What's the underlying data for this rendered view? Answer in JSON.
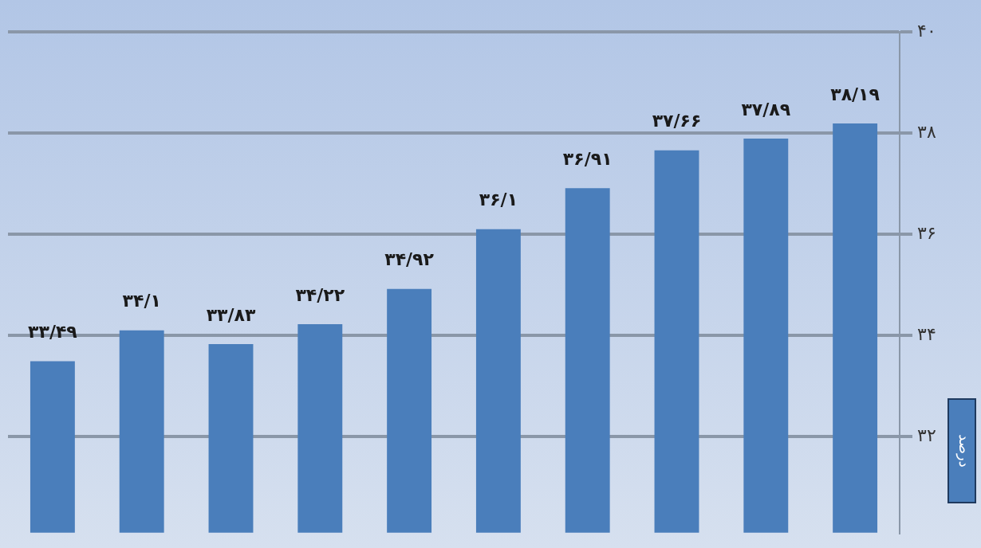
{
  "chart_data": {
    "type": "bar",
    "categories": [
      null,
      null,
      null,
      null,
      null,
      null,
      null,
      null,
      null,
      null
    ],
    "series": [
      {
        "name": "درصد",
        "color": "#4a7ebb",
        "values": [
          33.49,
          34.1,
          33.83,
          34.22,
          34.92,
          36.1,
          36.91,
          37.66,
          37.89,
          38.19
        ],
        "value_labels": [
          "۳۳/۴۹",
          "۳۴/۱",
          "۳۳/۸۳",
          "۳۴/۲۲",
          "۳۴/۹۲",
          "۳۶/۱",
          "۳۶/۹۱",
          "۳۷/۶۶",
          "۳۷/۸۹",
          "۳۸/۱۹"
        ]
      }
    ],
    "ylim": [
      30.1,
      40
    ],
    "yticks": [
      {
        "value": 32,
        "label": "۳۲"
      },
      {
        "value": 34,
        "label": "۳۴"
      },
      {
        "value": 36,
        "label": "۳۶"
      },
      {
        "value": 38,
        "label": "۳۸"
      },
      {
        "value": 40,
        "label": "۴۰"
      }
    ],
    "grid": "y",
    "legend": "right"
  }
}
